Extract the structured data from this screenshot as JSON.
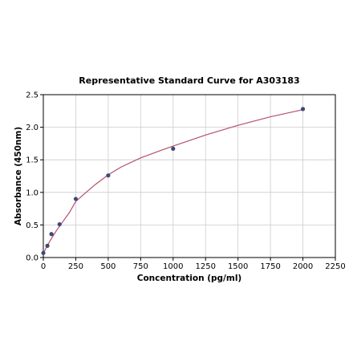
{
  "chart_data": {
    "type": "scatter",
    "title": "Representative Standard Curve for A303183",
    "xlabel": "Concentration (pg/ml)",
    "ylabel": "Absorbance (450nm)",
    "xlim": [
      0,
      2250
    ],
    "ylim": [
      0,
      2.5
    ],
    "x_ticks": [
      0,
      250,
      500,
      750,
      1000,
      1250,
      1500,
      1750,
      2000,
      2250
    ],
    "y_ticks": [
      0.0,
      0.5,
      1.0,
      1.5,
      2.0,
      2.5
    ],
    "x_tick_labels": [
      "0",
      "250",
      "500",
      "750",
      "1000",
      "1250",
      "1500",
      "1750",
      "2000",
      "2250"
    ],
    "y_tick_labels": [
      "0.0",
      "0.5",
      "1.0",
      "1.5",
      "2.0",
      "2.5"
    ],
    "grid": true,
    "series": [
      {
        "points": [
          {
            "x": 0,
            "y": 0.07
          },
          {
            "x": 31.25,
            "y": 0.18
          },
          {
            "x": 62.5,
            "y": 0.36
          },
          {
            "x": 125,
            "y": 0.51
          },
          {
            "x": 250,
            "y": 0.9
          },
          {
            "x": 500,
            "y": 1.26
          },
          {
            "x": 1000,
            "y": 1.67
          },
          {
            "x": 2000,
            "y": 2.28
          }
        ],
        "marker_color": "#3b4a7a"
      }
    ],
    "fit_curve": {
      "x": [
        0,
        10,
        25,
        50,
        75,
        100,
        150,
        200,
        250,
        300,
        400,
        500,
        600,
        750,
        900,
        1000,
        1250,
        1500,
        1750,
        2000
      ],
      "y": [
        0.06,
        0.1,
        0.16,
        0.25,
        0.33,
        0.41,
        0.55,
        0.69,
        0.86,
        0.95,
        1.12,
        1.27,
        1.39,
        1.53,
        1.64,
        1.71,
        1.88,
        2.03,
        2.16,
        2.27
      ],
      "color": "#b5506a"
    }
  }
}
